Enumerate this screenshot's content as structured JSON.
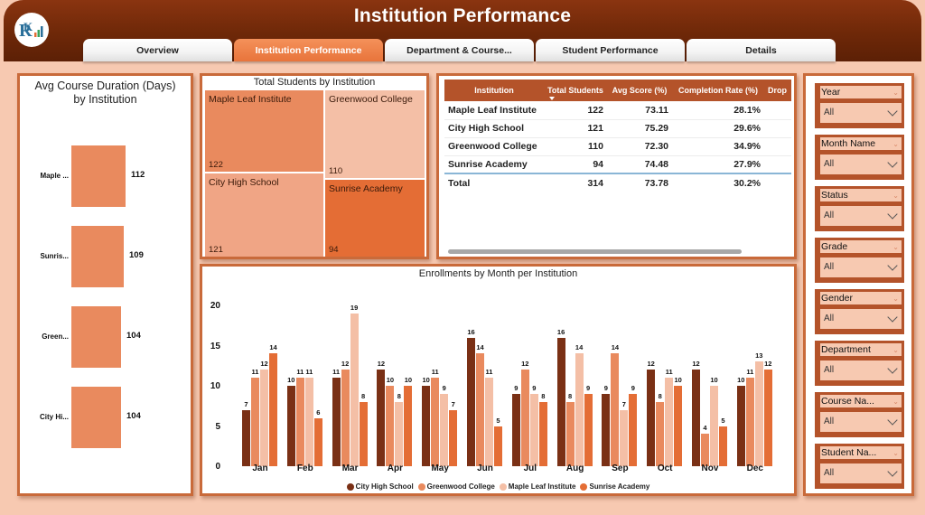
{
  "header": {
    "title": "Institution Performance",
    "logo": "rk-logo"
  },
  "tabs": [
    {
      "label": "Overview",
      "active": false
    },
    {
      "label": "Institution Performance",
      "active": true
    },
    {
      "label": "Department & Course...",
      "active": false
    },
    {
      "label": "Student Performance",
      "active": false
    },
    {
      "label": "Details",
      "active": false
    }
  ],
  "avg_duration": {
    "title_line1": "Avg Course Duration (Days)",
    "title_line2": "by Institution",
    "items": [
      {
        "label": "Maple ...",
        "value": "112"
      },
      {
        "label": "Sunris...",
        "value": "109"
      },
      {
        "label": "Green...",
        "value": "104"
      },
      {
        "label": "City Hi...",
        "value": "104"
      }
    ]
  },
  "treemap": {
    "title": "Total Students by Institution",
    "items": [
      {
        "name": "Maple Leaf Institute",
        "value": "122"
      },
      {
        "name": "Greenwood College",
        "value": "110"
      },
      {
        "name": "City High School",
        "value": "121"
      },
      {
        "name": "Sunrise Academy",
        "value": "94"
      }
    ]
  },
  "table": {
    "columns": [
      "Institution",
      "Total Students",
      "Avg Score (%)",
      "Completion Rate (%)",
      "Drop"
    ],
    "rows": [
      {
        "institution": "Maple Leaf Institute",
        "total": "122",
        "avg": "73.11",
        "completion": "28.1%"
      },
      {
        "institution": "City High School",
        "total": "121",
        "avg": "75.29",
        "completion": "29.6%"
      },
      {
        "institution": "Greenwood College",
        "total": "110",
        "avg": "72.30",
        "completion": "34.9%"
      },
      {
        "institution": "Sunrise Academy",
        "total": "94",
        "avg": "74.48",
        "completion": "27.9%"
      }
    ],
    "total": {
      "institution": "Total",
      "total": "314",
      "avg": "73.78",
      "completion": "30.2%"
    }
  },
  "slicers": [
    {
      "label": "Year",
      "value": "All"
    },
    {
      "label": "Month Name",
      "value": "All"
    },
    {
      "label": "Status",
      "value": "All"
    },
    {
      "label": "Grade",
      "value": "All"
    },
    {
      "label": "Gender",
      "value": "All"
    },
    {
      "label": "Department",
      "value": "All"
    },
    {
      "label": "Course Na...",
      "value": "All"
    },
    {
      "label": "Student Na...",
      "value": "All"
    }
  ],
  "colors": {
    "city_high": "#7a3015",
    "greenwood": "#e98a5e",
    "maple_leaf": "#f4bfa6",
    "sunrise": "#e46d35",
    "header": "#6e2808",
    "accent": "#b4532a"
  },
  "chart_data": [
    {
      "type": "bar",
      "title": "Avg Course Duration (Days) by Institution",
      "categories": [
        "Maple ...",
        "Sunris...",
        "Green...",
        "City Hi..."
      ],
      "values": [
        112,
        109,
        104,
        104
      ]
    },
    {
      "type": "treemap",
      "title": "Total Students by Institution",
      "categories": [
        "Maple Leaf Institute",
        "Greenwood College",
        "City High School",
        "Sunrise Academy"
      ],
      "values": [
        122,
        110,
        121,
        94
      ]
    },
    {
      "type": "bar",
      "title": "Enrollments by Month per Institution",
      "categories": [
        "Jan",
        "Feb",
        "Mar",
        "Apr",
        "May",
        "Jun",
        "Jul",
        "Aug",
        "Sep",
        "Oct",
        "Nov",
        "Dec"
      ],
      "series": [
        {
          "name": "City High School",
          "values": [
            7,
            10,
            11,
            12,
            10,
            16,
            9,
            16,
            9,
            12,
            12,
            10
          ]
        },
        {
          "name": "Greenwood College",
          "values": [
            11,
            11,
            12,
            10,
            11,
            14,
            12,
            8,
            14,
            8,
            4,
            11
          ]
        },
        {
          "name": "Maple Leaf Institute",
          "values": [
            12,
            11,
            19,
            8,
            9,
            11,
            9,
            14,
            7,
            11,
            10,
            13
          ]
        },
        {
          "name": "Sunrise Academy",
          "values": [
            14,
            6,
            8,
            10,
            7,
            5,
            8,
            9,
            9,
            10,
            5,
            12
          ]
        }
      ],
      "yticks": [
        0,
        5,
        10,
        15,
        20
      ],
      "ylim": [
        0,
        20
      ],
      "xlabel": "",
      "ylabel": "",
      "legend_position": "bottom",
      "grid": false
    }
  ]
}
